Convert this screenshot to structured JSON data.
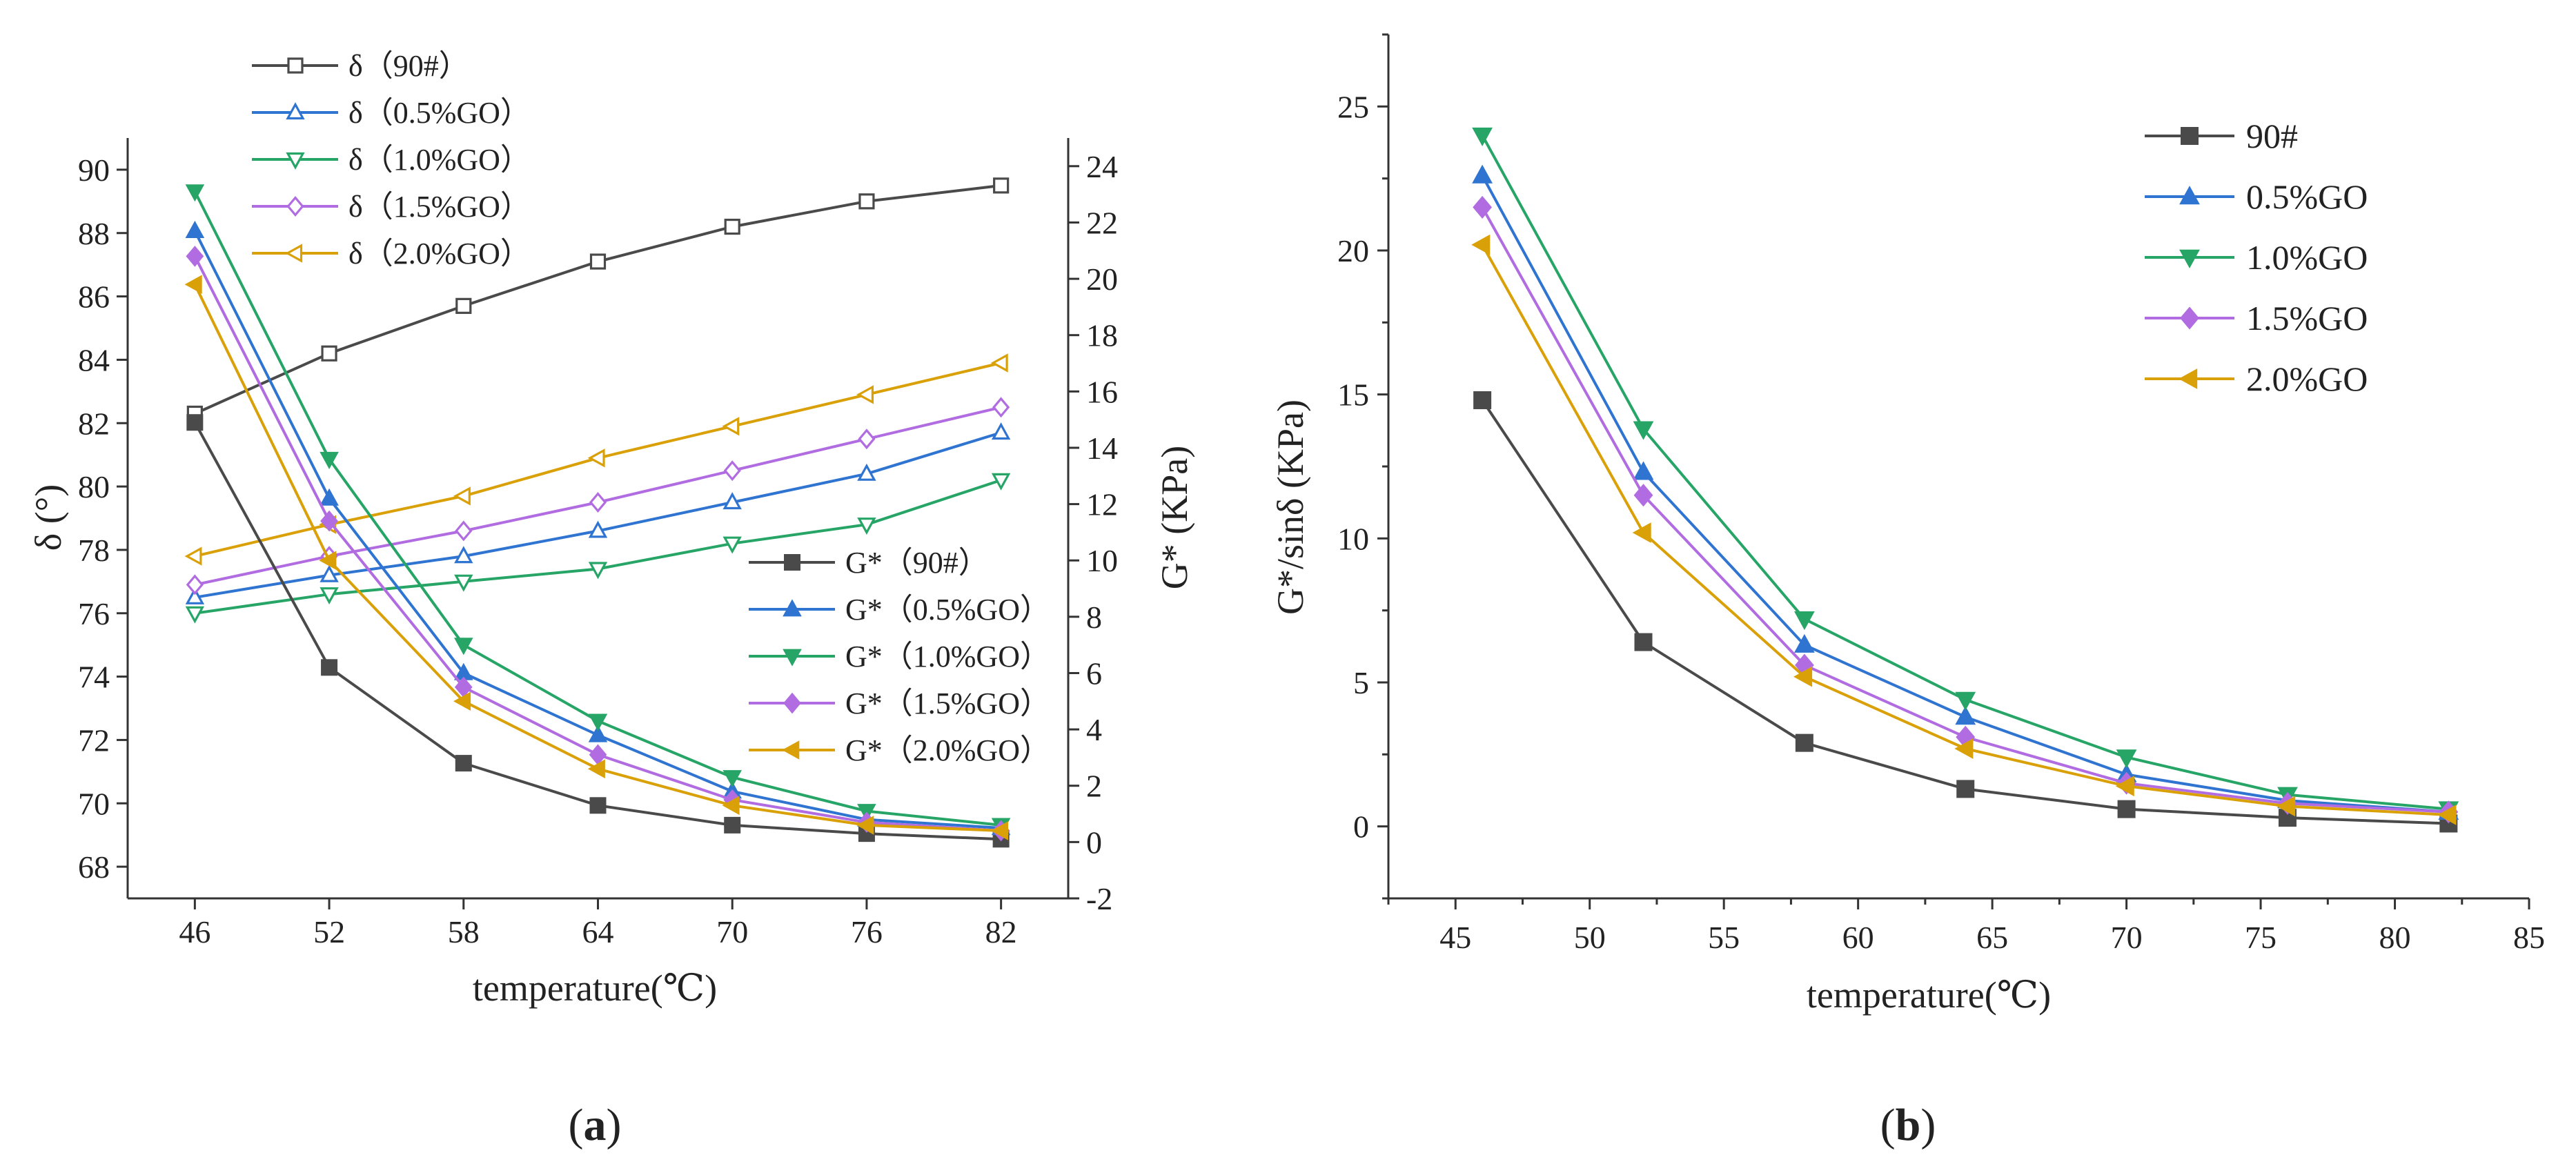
{
  "chart_data": [
    {
      "panel": "a",
      "panel_label": {
        "open": "(",
        "letter": "a",
        "close": ")"
      },
      "type": "line",
      "xlabel": "temperature(℃)",
      "ylabel_left": "δ (°)",
      "ylabel_right": "G* (KPa)",
      "x": [
        46,
        52,
        58,
        64,
        70,
        76,
        82
      ],
      "x_ticks": [
        "46",
        "52",
        "58",
        "64",
        "70",
        "76",
        "82"
      ],
      "ylim_left": [
        67,
        91
      ],
      "y_ticks_left": [
        "68",
        "70",
        "72",
        "74",
        "76",
        "78",
        "80",
        "82",
        "84",
        "86",
        "88",
        "90"
      ],
      "ylim_right": [
        -2,
        25
      ],
      "y_ticks_right": [
        "-2",
        "0",
        "2",
        "4",
        "6",
        "8",
        "10",
        "12",
        "14",
        "16",
        "18",
        "20",
        "22",
        "24"
      ],
      "phase_angle_series": [
        {
          "name": "δ（90#）",
          "color": "#4a4a4a",
          "marker": "square-open",
          "values": [
            82.3,
            84.2,
            85.7,
            87.1,
            88.2,
            89.0,
            89.5
          ]
        },
        {
          "name": "δ（0.5%GO）",
          "color": "#2f74d0",
          "marker": "triangle-up-open",
          "values": [
            76.5,
            77.2,
            77.8,
            78.6,
            79.5,
            80.4,
            81.7
          ]
        },
        {
          "name": "δ（1.0%GO）",
          "color": "#27a567",
          "marker": "triangle-down-open",
          "values": [
            76.0,
            76.6,
            77.0,
            77.4,
            78.2,
            78.8,
            80.2
          ]
        },
        {
          "name": "δ（1.5%GO）",
          "color": "#b06ce0",
          "marker": "diamond-open",
          "values": [
            76.9,
            77.8,
            78.6,
            79.5,
            80.5,
            81.5,
            82.5
          ]
        },
        {
          "name": "δ（2.0%GO）",
          "color": "#d9a008",
          "marker": "triangle-left-open",
          "values": [
            77.8,
            78.8,
            79.7,
            80.9,
            81.9,
            82.9,
            83.9
          ]
        }
      ],
      "complex_modulus_series": [
        {
          "name": "G*（90#）",
          "color": "#4a4a4a",
          "marker": "square",
          "values": [
            14.9,
            6.2,
            2.8,
            1.3,
            0.6,
            0.3,
            0.1
          ]
        },
        {
          "name": "G*（0.5%GO）",
          "color": "#2f74d0",
          "marker": "triangle-up",
          "values": [
            21.7,
            12.2,
            6.0,
            3.8,
            1.8,
            0.8,
            0.5
          ]
        },
        {
          "name": "G*（1.0%GO）",
          "color": "#27a567",
          "marker": "triangle-down",
          "values": [
            23.1,
            13.6,
            7.0,
            4.3,
            2.3,
            1.1,
            0.6
          ]
        },
        {
          "name": "G*（1.5%GO）",
          "color": "#b06ce0",
          "marker": "diamond",
          "values": [
            20.8,
            11.4,
            5.5,
            3.1,
            1.5,
            0.7,
            0.4
          ]
        },
        {
          "name": "G*（2.0%GO）",
          "color": "#d9a008",
          "marker": "triangle-left",
          "values": [
            19.8,
            10.0,
            5.0,
            2.6,
            1.3,
            0.6,
            0.4
          ]
        }
      ],
      "legend_top": "top-left",
      "legend_bottom": "right"
    },
    {
      "panel": "b",
      "panel_label": {
        "open": "(",
        "letter": "b",
        "close": ")"
      },
      "type": "line",
      "xlabel": "temperature(℃)",
      "ylabel": "G*/sinδ (KPa)",
      "x": [
        46,
        52,
        58,
        64,
        70,
        76,
        82
      ],
      "xlim": [
        42.5,
        85
      ],
      "x_ticks": [
        "45",
        "50",
        "55",
        "60",
        "65",
        "70",
        "75",
        "80",
        "85"
      ],
      "ylim": [
        -2.5,
        27.5
      ],
      "y_ticks": [
        "0",
        "5",
        "10",
        "15",
        "20",
        "25"
      ],
      "series": [
        {
          "name": "90#",
          "color": "#4a4a4a",
          "marker": "square",
          "values": [
            14.8,
            6.4,
            2.9,
            1.3,
            0.6,
            0.3,
            0.1
          ]
        },
        {
          "name": "0.5%GO",
          "color": "#2f74d0",
          "marker": "triangle-up",
          "values": [
            22.6,
            12.3,
            6.3,
            3.8,
            1.8,
            0.9,
            0.5
          ]
        },
        {
          "name": "1.0%GO",
          "color": "#27a567",
          "marker": "triangle-down",
          "values": [
            24.0,
            13.8,
            7.2,
            4.4,
            2.4,
            1.1,
            0.6
          ]
        },
        {
          "name": "1.5%GO",
          "color": "#b06ce0",
          "marker": "diamond",
          "values": [
            21.5,
            11.5,
            5.6,
            3.1,
            1.5,
            0.8,
            0.5
          ]
        },
        {
          "name": "2.0%GO",
          "color": "#d9a008",
          "marker": "triangle-left",
          "values": [
            20.2,
            10.2,
            5.2,
            2.7,
            1.4,
            0.7,
            0.4
          ]
        }
      ],
      "legend": "top-right"
    }
  ]
}
